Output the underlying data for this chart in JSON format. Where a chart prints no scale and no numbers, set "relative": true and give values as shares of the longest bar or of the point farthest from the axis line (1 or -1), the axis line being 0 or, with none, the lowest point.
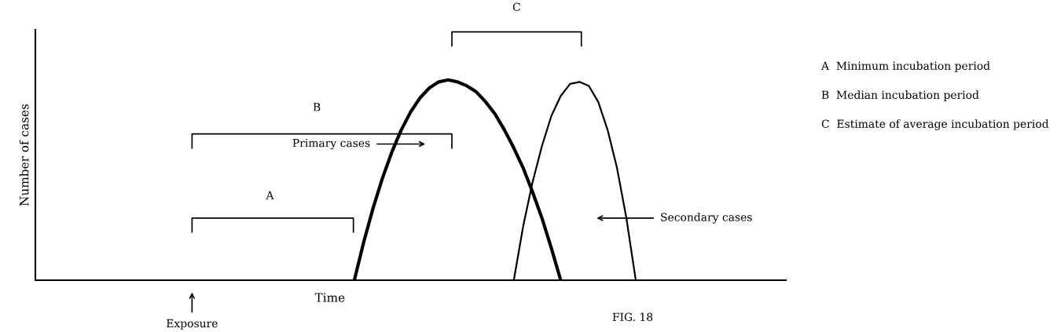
{
  "chart_data": {
    "type": "line",
    "relative": true,
    "ylabel": "Number of cases",
    "xlabel": "Time",
    "grid": false,
    "legend": false,
    "marker": "none",
    "line_style": "solid",
    "categories": [
      null,
      null,
      null,
      null,
      null,
      null,
      null,
      null,
      null,
      null,
      null,
      null,
      null,
      null,
      null,
      null,
      null,
      null,
      null,
      null,
      null,
      null,
      null,
      null,
      null,
      null,
      null,
      null,
      null,
      null,
      null,
      null,
      null,
      null,
      null,
      null,
      null,
      null,
      null,
      null,
      null,
      null,
      null,
      null,
      null,
      null,
      null,
      null,
      null,
      null,
      null,
      null,
      null,
      null,
      null,
      null,
      null,
      null,
      null,
      null,
      null,
      null,
      null,
      null,
      null,
      null,
      null,
      null,
      null,
      null,
      null,
      null,
      null,
      null,
      null,
      null,
      null,
      null,
      null,
      null,
      null
    ],
    "series": [
      {
        "color": "#000000",
        "values": [
          null,
          null,
          null,
          null,
          null,
          null,
          null,
          null,
          null,
          null,
          null,
          null,
          null,
          null,
          null,
          null,
          null,
          null,
          null,
          null,
          null,
          null,
          null,
          null,
          null,
          null,
          null,
          null,
          null,
          null,
          null,
          null,
          null,
          null,
          0,
          0.19,
          0.36,
          0.51,
          0.64,
          0.75,
          0.84,
          0.91,
          0.96,
          0.99,
          1,
          0.99,
          0.97,
          0.94,
          0.89,
          0.83,
          0.75,
          0.66,
          0.56,
          0.44,
          0.31,
          0.16,
          0,
          null,
          null,
          null,
          null,
          null,
          null,
          null,
          null,
          null,
          null,
          null,
          null,
          null,
          null,
          null,
          null,
          null,
          null,
          null,
          null,
          null,
          null,
          null,
          null
        ]
      },
      {
        "color": "#000000",
        "values": [
          null,
          null,
          null,
          null,
          null,
          null,
          null,
          null,
          null,
          null,
          null,
          null,
          null,
          null,
          null,
          null,
          null,
          null,
          null,
          null,
          null,
          null,
          null,
          null,
          null,
          null,
          null,
          null,
          null,
          null,
          null,
          null,
          null,
          null,
          null,
          null,
          null,
          null,
          null,
          null,
          null,
          null,
          null,
          null,
          null,
          null,
          null,
          null,
          null,
          null,
          null,
          0,
          0.27,
          0.49,
          0.67,
          0.82,
          0.92,
          0.98,
          0.99,
          0.97,
          0.89,
          0.75,
          0.56,
          0.31,
          0,
          null,
          null,
          null,
          null,
          null,
          null,
          null,
          null,
          null,
          null,
          null,
          null,
          null,
          null,
          null,
          null
        ]
      }
    ],
    "annotations": [
      "A",
      "B",
      "C",
      "Primary cases",
      "Secondary cases",
      "Exposure",
      "A  Minimum incubation period",
      "B  Median incubation period",
      "C  Estimate of average incubation period",
      "FIG. 18"
    ]
  }
}
